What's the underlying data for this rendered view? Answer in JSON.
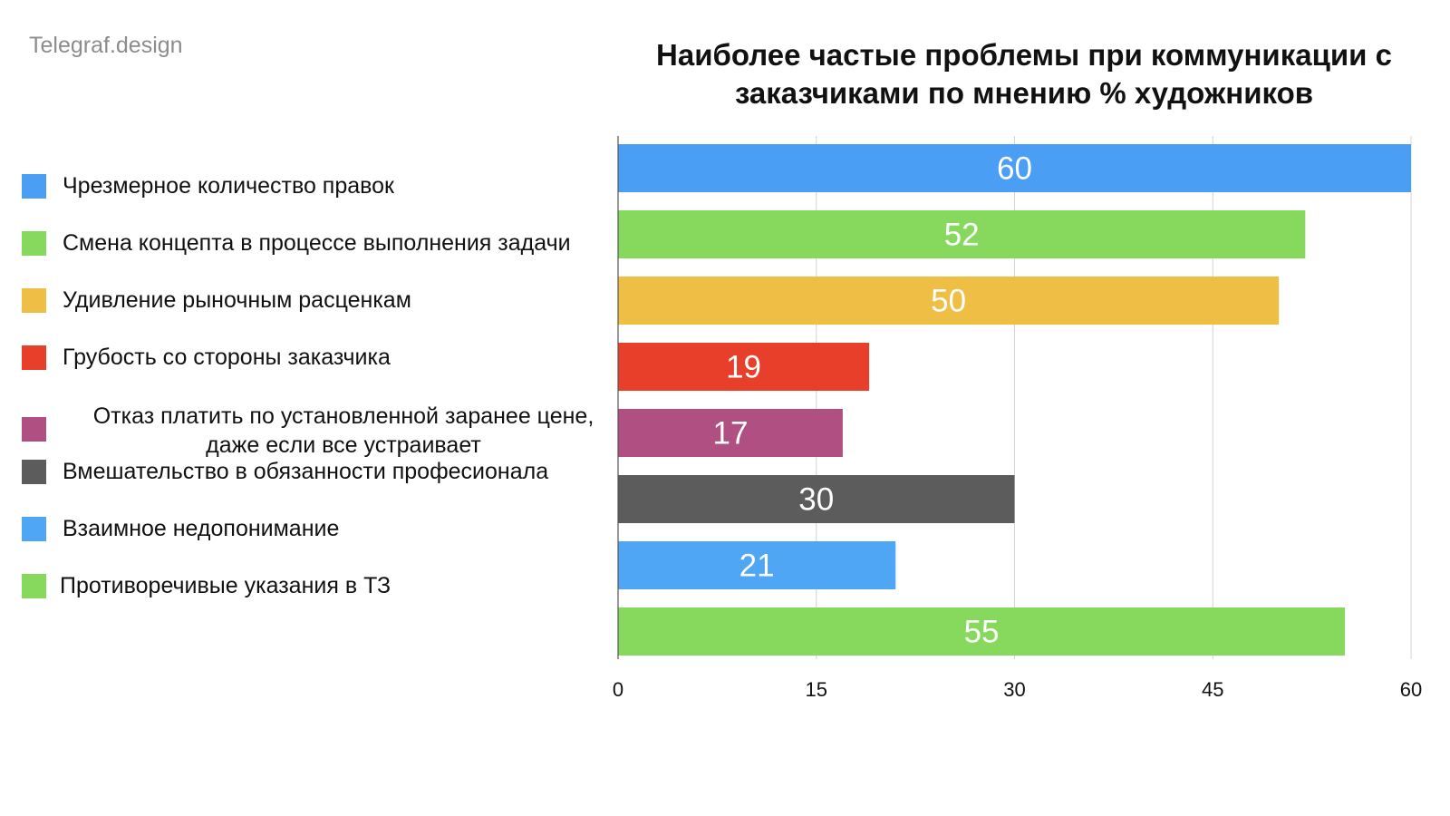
{
  "watermark": "Telegraf.design",
  "chart_data": {
    "type": "bar",
    "orientation": "horizontal",
    "title": "Наиболее частые проблемы при коммуникации с заказчиками по мнению % художников",
    "title_lines": [
      "Наиболее частые проблемы при коммуникации с",
      "заказчиками по мнению % художников"
    ],
    "xlim": [
      0,
      60
    ],
    "ticks": [
      "0",
      "15",
      "30",
      "45",
      "60"
    ],
    "tick_values": [
      0,
      15,
      30,
      45,
      60
    ],
    "grid": true,
    "legend_position": "left",
    "categories": [
      "Чрезмерное количество правок",
      "Смена концепта в процессе выполнения задачи",
      "Удивление рыночным расценкам",
      "Грубость со стороны заказчика",
      "Отказ платить по установленной заранее цене, даже если все устраивает",
      "Вмешательство в обязанности професионала",
      "Взаимное недопонимание",
      "Противоречивые указания в ТЗ"
    ],
    "values": [
      60,
      52,
      50,
      19,
      17,
      30,
      21,
      55
    ],
    "data_labels": [
      "60",
      "52",
      "50",
      "19",
      "17",
      "30",
      "21",
      "55"
    ],
    "colors": [
      "#4a9ff5",
      "#86d95c",
      "#efbe44",
      "#e83f2a",
      "#b04f82",
      "#5c5c5c",
      "#4ea6f5",
      "#86d95c"
    ]
  },
  "legend": [
    {
      "label": "Чрезмерное количество правок",
      "color": "#4a9ff5"
    },
    {
      "label": "Смена концепта в процессе выполнения задачи",
      "color": "#86d95c"
    },
    {
      "label": "Удивление рыночным расценкам",
      "color": "#efbe44"
    },
    {
      "label": "Грубость со стороны заказчика",
      "color": "#e83f2a"
    },
    {
      "label_lines": [
        "Отказ платить по установленной заранее цене,",
        "даже если все устраивает"
      ],
      "color": "#b04f82"
    },
    {
      "label": "Вмешательство в обязанности професионала",
      "color": "#5c5c5c"
    },
    {
      "label": "Взаимное недопонимание",
      "color": "#4ea6f5"
    },
    {
      "label": "Противоречивые указания в ТЗ",
      "color": "#86d95c"
    }
  ]
}
